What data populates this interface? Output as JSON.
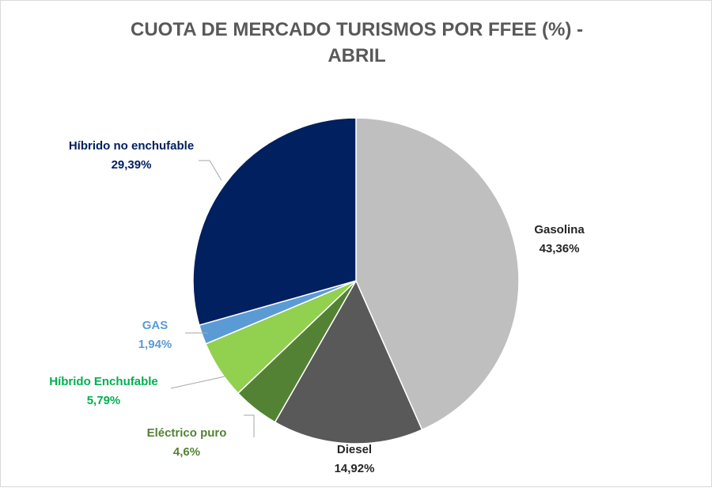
{
  "chart_data": {
    "type": "pie",
    "title_line1": "CUOTA DE MERCADO TURISMOS POR FFEE (%) -",
    "title_line2": "ABRIL",
    "slices": [
      {
        "key": "gasolina",
        "name": "Gasolina",
        "value": 43.36,
        "value_label": "43,36%",
        "color": "#bfbfbf",
        "label_color": "#262626"
      },
      {
        "key": "diesel",
        "name": "Diesel",
        "value": 14.92,
        "value_label": "14,92%",
        "color": "#595959",
        "label_color": "#262626"
      },
      {
        "key": "electrico",
        "name": "Eléctrico puro",
        "value": 4.6,
        "value_label": "4,6%",
        "color": "#548235",
        "label_color": "#548235"
      },
      {
        "key": "hibrido-enchufable",
        "name": "Híbrido Enchufable",
        "value": 5.79,
        "value_label": "5,79%",
        "color": "#92d050",
        "label_color": "#00b050"
      },
      {
        "key": "gas",
        "name": "GAS",
        "value": 1.94,
        "value_label": "1,94%",
        "color": "#5b9bd5",
        "label_color": "#5b9bd5"
      },
      {
        "key": "hibrido-no-enchufable",
        "name": "Híbrido no enchufable",
        "value": 29.39,
        "value_label": "29,39%",
        "color": "#002060",
        "label_color": "#002060"
      }
    ]
  }
}
